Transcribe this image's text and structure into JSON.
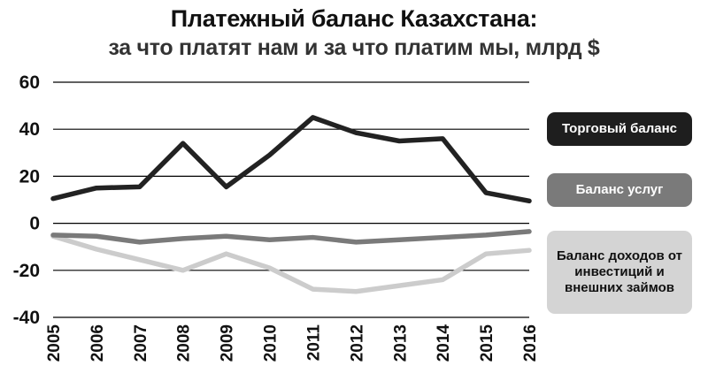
{
  "title": "Платежный баланс Казахстана:",
  "subtitle": "за что платят нам и за что платим мы, млрд $",
  "chart_data": {
    "type": "line",
    "x": [
      "2005",
      "2006",
      "2007",
      "2008",
      "2009",
      "2010",
      "2011",
      "2012",
      "2013",
      "2014",
      "2015",
      "2016"
    ],
    "ylim": [
      -40,
      60
    ],
    "yticks": [
      60,
      40,
      20,
      0,
      -20,
      -40
    ],
    "grid": true,
    "legend_position": "right",
    "series": [
      {
        "name": "Торговый баланс",
        "color": "#222222",
        "values": [
          10.5,
          15,
          15.5,
          34,
          15.5,
          29,
          45,
          38.5,
          35,
          36,
          13,
          9.5
        ]
      },
      {
        "name": "Баланс услуг",
        "color": "#7a7a7a",
        "values": [
          -5,
          -5.5,
          -8,
          -6.5,
          -5.5,
          -7,
          -6,
          -8,
          -7,
          -6,
          -5,
          -3.5
        ]
      },
      {
        "name": "Баланс доходов от инвестиций и внешних займов",
        "color": "#cccccc",
        "values": [
          -5.5,
          -11,
          -15.5,
          -20,
          -13,
          -19,
          -28,
          -29,
          -26.5,
          -24,
          -13,
          -11.5
        ]
      }
    ]
  }
}
